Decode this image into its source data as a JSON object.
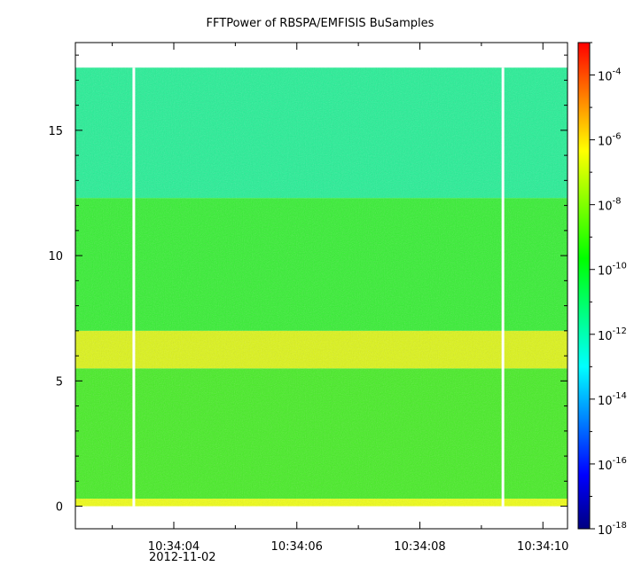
{
  "chart_data": {
    "type": "heatmap",
    "title": "FFTPower of RBSPA/EMFISIS  BuSamples",
    "date_label": "2012-11-02",
    "xlabel": "",
    "ylabel": "",
    "x_tick_labels": [
      "10:34:04",
      "10:34:06",
      "10:34:08",
      "10:34:10"
    ],
    "x_range": [
      "10:34:02.4",
      "10:34:10.4"
    ],
    "y_ticks": [
      0,
      5,
      10,
      15
    ],
    "y_tick_labels": [
      "0",
      "5",
      "10",
      "15"
    ],
    "y_range": [
      -0.9,
      18.5
    ],
    "data_top": 17.5,
    "colorbar": {
      "scale": "log",
      "range": [
        1e-18,
        0.001
      ],
      "tick_bases": [
        "10",
        "10",
        "10",
        "10",
        "10",
        "10",
        "10",
        "10"
      ],
      "tick_exponents": [
        "-18",
        "-16",
        "-14",
        "-12",
        "-10",
        "-8",
        "-6",
        "-4"
      ],
      "colormap": [
        "#000080",
        "#0000ff",
        "#0080ff",
        "#00ffff",
        "#00ff80",
        "#00ff00",
        "#80ff00",
        "#ffff00",
        "#ff8000",
        "#ff0000"
      ]
    },
    "bands": [
      {
        "y_from": 0.0,
        "y_to": 0.3,
        "power": "1e-8",
        "color": "#f0ff10"
      },
      {
        "y_from": 0.3,
        "y_to": 5.5,
        "power": "1e-10",
        "color": "#44ee22"
      },
      {
        "y_from": 5.5,
        "y_to": 7.0,
        "power": "1e-8",
        "color": "#ddf515"
      },
      {
        "y_from": 7.0,
        "y_to": 12.3,
        "power": "1e-10",
        "color": "#33f030"
      },
      {
        "y_from": 12.3,
        "y_to": 17.5,
        "power": "1e-12",
        "color": "#22f095"
      }
    ],
    "data_gaps": [
      "10:34:03.35",
      "10:34:09.35"
    ]
  }
}
